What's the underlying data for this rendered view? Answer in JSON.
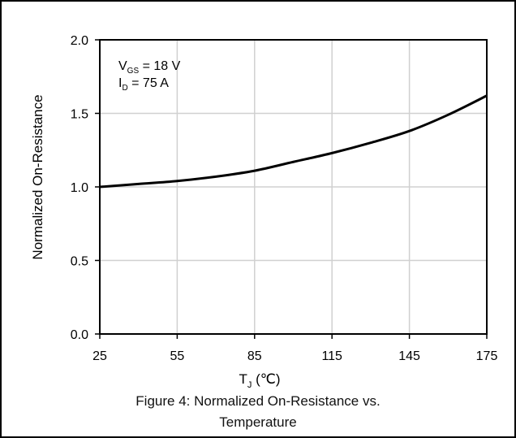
{
  "figure": {
    "caption_line1": "Figure 4: Normalized On-Resistance vs.",
    "caption_line2": "Temperature"
  },
  "chart_data": {
    "type": "line",
    "xlabel": "T_J (℃)",
    "ylabel": "Normalized On-Resistance",
    "xlim": [
      25,
      175
    ],
    "ylim": [
      0,
      2.0
    ],
    "x_ticks": [
      25,
      55,
      85,
      115,
      145,
      175
    ],
    "y_ticks": [
      "0.0",
      "0.5",
      "1.0",
      "1.5",
      "2.0"
    ],
    "grid": true,
    "annotations": [
      "V_GS = 18 V",
      "I_D = 75 A"
    ],
    "series": [
      {
        "x": [
          25,
          40,
          55,
          70,
          85,
          100,
          115,
          130,
          145,
          160,
          175
        ],
        "y": [
          1.0,
          1.02,
          1.04,
          1.07,
          1.11,
          1.17,
          1.23,
          1.3,
          1.38,
          1.49,
          1.62
        ]
      }
    ]
  }
}
